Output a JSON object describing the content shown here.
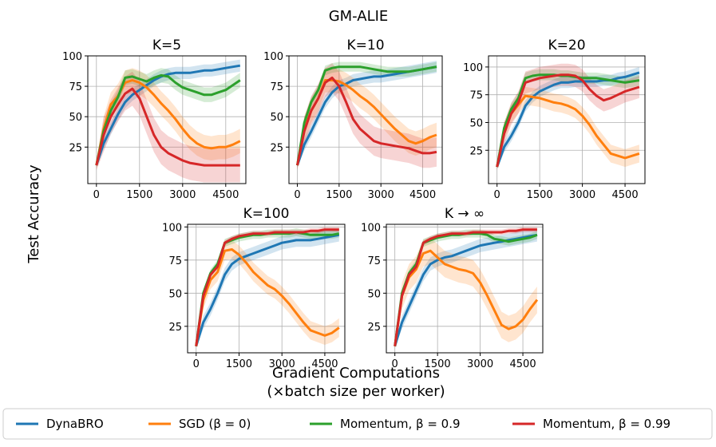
{
  "colors": {
    "dynabro": "#1f77b4",
    "sgd": "#ff7f0e",
    "mom09": "#2ca02c",
    "mom099": "#d62728"
  },
  "figure": {
    "title": "GM-ALIE",
    "xlabel_line1": "Gradient Computations",
    "xlabel_line2": "(×batch size per worker)",
    "ylabel": "Test Accuracy"
  },
  "legend": {
    "dynabro": "DynaBRO",
    "sgd": "SGD (β = 0)",
    "mom09": "Momentum, β = 0.9",
    "mom099": "Momentum, β = 0.99"
  },
  "chart_data": [
    {
      "type": "line",
      "title": "K=5",
      "xlim": [
        -300,
        5200
      ],
      "ylim": [
        -5,
        100
      ],
      "xticks": [
        "0",
        "1500",
        "3000",
        "4500"
      ],
      "yticks": [
        "25",
        "50",
        "75",
        "100"
      ],
      "x": [
        0,
        250,
        500,
        750,
        1000,
        1250,
        1500,
        1750,
        2000,
        2250,
        2500,
        2750,
        3000,
        3250,
        3500,
        3750,
        4000,
        4250,
        4500,
        4750,
        5000
      ],
      "series": [
        {
          "name": "DynaBRO",
          "key": "dynabro",
          "values": [
            10,
            28,
            40,
            52,
            62,
            68,
            72,
            76,
            80,
            83,
            85,
            86,
            86,
            86,
            87,
            88,
            88,
            89,
            90,
            91,
            92
          ],
          "band": 5
        },
        {
          "name": "SGD (β = 0)",
          "key": "sgd",
          "values": [
            10,
            40,
            60,
            67,
            78,
            80,
            78,
            74,
            68,
            61,
            55,
            48,
            40,
            33,
            28,
            25,
            24,
            25,
            25,
            27,
            30
          ],
          "band": 10
        },
        {
          "name": "Momentum, β = 0.9",
          "key": "mom09",
          "values": [
            10,
            38,
            55,
            66,
            82,
            83,
            81,
            79,
            82,
            84,
            83,
            78,
            74,
            72,
            70,
            68,
            68,
            70,
            72,
            76,
            80
          ],
          "band": 6
        },
        {
          "name": "Momentum, β = 0.99",
          "key": "mom099",
          "values": [
            10,
            35,
            50,
            60,
            69,
            73,
            65,
            50,
            35,
            25,
            20,
            17,
            14,
            12,
            11,
            10,
            10,
            10,
            10,
            10,
            10
          ],
          "band": 14
        }
      ]
    },
    {
      "type": "line",
      "title": "K=10",
      "xlim": [
        -300,
        5200
      ],
      "ylim": [
        -5,
        100
      ],
      "xticks": [
        "0",
        "1500",
        "3000",
        "4500"
      ],
      "yticks": [
        "25",
        "50",
        "75",
        "100"
      ],
      "x": [
        0,
        250,
        500,
        750,
        1000,
        1250,
        1500,
        1750,
        2000,
        2250,
        2500,
        2750,
        3000,
        3250,
        3500,
        3750,
        4000,
        4250,
        4500,
        4750,
        5000
      ],
      "series": [
        {
          "name": "DynaBRO",
          "key": "dynabro",
          "values": [
            10,
            27,
            38,
            50,
            62,
            70,
            75,
            77,
            80,
            81,
            82,
            83,
            83,
            84,
            85,
            86,
            87,
            88,
            89,
            90,
            91
          ],
          "band": 5
        },
        {
          "name": "SGD (β = 0)",
          "key": "sgd",
          "values": [
            10,
            40,
            55,
            65,
            80,
            80,
            79,
            76,
            72,
            67,
            63,
            58,
            52,
            46,
            40,
            35,
            30,
            28,
            30,
            33,
            35
          ],
          "band": 10
        },
        {
          "name": "Momentum, β = 0.9",
          "key": "mom09",
          "values": [
            10,
            45,
            62,
            72,
            88,
            90,
            91,
            91,
            91,
            91,
            90,
            89,
            88,
            87,
            87,
            87,
            87,
            88,
            89,
            90,
            91
          ],
          "band": 4
        },
        {
          "name": "Momentum, β = 0.99",
          "key": "mom099",
          "values": [
            10,
            38,
            55,
            65,
            78,
            82,
            75,
            62,
            48,
            40,
            35,
            30,
            28,
            27,
            26,
            25,
            24,
            22,
            20,
            20,
            21
          ],
          "band": 12
        }
      ]
    },
    {
      "type": "line",
      "title": "K=20",
      "xlim": [
        -300,
        5200
      ],
      "ylim": [
        -5,
        110
      ],
      "xticks": [
        "0",
        "1500",
        "3000",
        "4500"
      ],
      "yticks": [
        "25",
        "50",
        "75",
        "100"
      ],
      "x": [
        0,
        250,
        500,
        750,
        1000,
        1250,
        1500,
        1750,
        2000,
        2250,
        2500,
        2750,
        3000,
        3250,
        3500,
        3750,
        4000,
        4250,
        4500,
        4750,
        5000
      ],
      "series": [
        {
          "name": "DynaBRO",
          "key": "dynabro",
          "values": [
            10,
            28,
            38,
            50,
            65,
            73,
            78,
            81,
            84,
            86,
            86,
            87,
            87,
            87,
            87,
            88,
            88,
            90,
            91,
            93,
            95
          ],
          "band": 5
        },
        {
          "name": "SGD (β = 0)",
          "key": "sgd",
          "values": [
            10,
            42,
            58,
            66,
            74,
            73,
            72,
            70,
            68,
            67,
            65,
            62,
            56,
            48,
            38,
            30,
            22,
            20,
            18,
            20,
            22
          ],
          "band": 8
        },
        {
          "name": "Momentum, β = 0.9",
          "key": "mom09",
          "values": [
            10,
            45,
            62,
            72,
            90,
            92,
            93,
            93,
            93,
            92,
            92,
            91,
            90,
            90,
            90,
            89,
            88,
            87,
            86,
            87,
            88
          ],
          "band": 5
        },
        {
          "name": "Momentum, β = 0.99",
          "key": "mom099",
          "values": [
            10,
            40,
            58,
            68,
            86,
            88,
            90,
            91,
            92,
            93,
            93,
            92,
            88,
            80,
            74,
            70,
            72,
            75,
            78,
            80,
            82
          ],
          "band": 10
        }
      ]
    },
    {
      "type": "line",
      "title": "K=100",
      "xlim": [
        -300,
        5200
      ],
      "ylim": [
        5,
        102
      ],
      "xticks": [
        "0",
        "1500",
        "3000",
        "4500"
      ],
      "yticks": [
        "25",
        "50",
        "75",
        "100"
      ],
      "x": [
        0,
        250,
        500,
        750,
        1000,
        1250,
        1500,
        1750,
        2000,
        2250,
        2500,
        2750,
        3000,
        3250,
        3500,
        3750,
        4000,
        4250,
        4500,
        4750,
        5000
      ],
      "series": [
        {
          "name": "DynaBRO",
          "key": "dynabro",
          "values": [
            10,
            28,
            38,
            50,
            64,
            72,
            76,
            78,
            80,
            82,
            84,
            86,
            88,
            89,
            90,
            90,
            90,
            91,
            92,
            93,
            94
          ],
          "band": 5
        },
        {
          "name": "SGD (β = 0)",
          "key": "sgd",
          "values": [
            10,
            45,
            60,
            66,
            82,
            83,
            79,
            73,
            66,
            61,
            56,
            53,
            48,
            42,
            35,
            28,
            22,
            20,
            18,
            20,
            24
          ],
          "band": 7
        },
        {
          "name": "Momentum, β = 0.9",
          "key": "mom09",
          "values": [
            10,
            50,
            65,
            72,
            88,
            90,
            92,
            93,
            94,
            94,
            95,
            95,
            95,
            95,
            96,
            95,
            94,
            94,
            94,
            94,
            95
          ],
          "band": 3
        },
        {
          "name": "Momentum, β = 0.99",
          "key": "mom099",
          "values": [
            10,
            48,
            64,
            70,
            88,
            91,
            93,
            94,
            95,
            95,
            95,
            96,
            96,
            96,
            96,
            96,
            97,
            97,
            98,
            98,
            98
          ],
          "band": 2
        }
      ]
    },
    {
      "type": "line",
      "title": "K → ∞",
      "xlim": [
        -300,
        5200
      ],
      "ylim": [
        5,
        102
      ],
      "xticks": [
        "0",
        "1500",
        "3000",
        "4500"
      ],
      "yticks": [
        "25",
        "50",
        "75",
        "100"
      ],
      "x": [
        0,
        250,
        500,
        750,
        1000,
        1250,
        1500,
        1750,
        2000,
        2250,
        2500,
        2750,
        3000,
        3250,
        3500,
        3750,
        4000,
        4250,
        4500,
        4750,
        5000
      ],
      "series": [
        {
          "name": "DynaBRO",
          "key": "dynabro",
          "values": [
            10,
            28,
            40,
            52,
            64,
            72,
            75,
            77,
            78,
            80,
            82,
            84,
            86,
            87,
            88,
            89,
            90,
            91,
            92,
            93,
            94
          ],
          "band": 5
        },
        {
          "name": "SGD (β = 0)",
          "key": "sgd",
          "values": [
            10,
            48,
            62,
            68,
            80,
            82,
            77,
            72,
            70,
            68,
            67,
            65,
            58,
            48,
            37,
            26,
            23,
            25,
            30,
            38,
            45
          ],
          "band": 10
        },
        {
          "name": "Momentum, β = 0.9",
          "key": "mom09",
          "values": [
            10,
            50,
            65,
            72,
            88,
            90,
            92,
            93,
            94,
            94,
            95,
            95,
            95,
            94,
            91,
            90,
            89,
            90,
            91,
            92,
            94
          ],
          "band": 3
        },
        {
          "name": "Momentum, β = 0.99",
          "key": "mom099",
          "values": [
            10,
            48,
            64,
            70,
            88,
            91,
            93,
            94,
            95,
            95,
            95,
            96,
            96,
            96,
            96,
            96,
            97,
            97,
            98,
            98,
            98
          ],
          "band": 2
        }
      ]
    }
  ]
}
